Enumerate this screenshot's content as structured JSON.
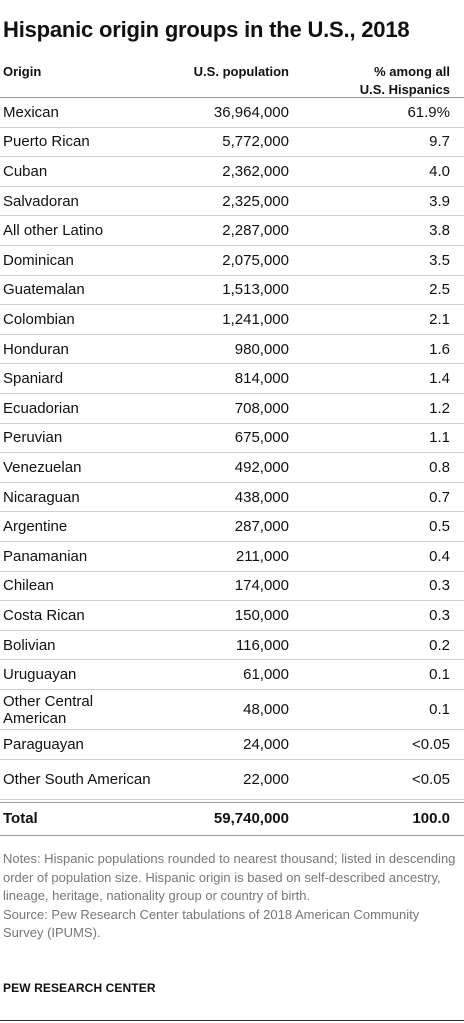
{
  "title": "Hispanic origin groups in the U.S., 2018",
  "headers": {
    "origin": "Origin",
    "population": "U.S. population",
    "percent_line1": "% among all",
    "percent_line2": "U.S. Hispanics"
  },
  "chart_data": {
    "type": "table",
    "title": "Hispanic origin groups in the U.S., 2018",
    "columns": [
      "Origin",
      "U.S. population",
      "% among all U.S. Hispanics"
    ],
    "rows": [
      {
        "origin": "Mexican",
        "population": "36,964,000",
        "percent": "61.9%"
      },
      {
        "origin": "Puerto Rican",
        "population": "5,772,000",
        "percent": "9.7"
      },
      {
        "origin": "Cuban",
        "population": "2,362,000",
        "percent": "4.0"
      },
      {
        "origin": "Salvadoran",
        "population": "2,325,000",
        "percent": "3.9"
      },
      {
        "origin": "All other Latino",
        "population": "2,287,000",
        "percent": "3.8"
      },
      {
        "origin": "Dominican",
        "population": "2,075,000",
        "percent": "3.5"
      },
      {
        "origin": "Guatemalan",
        "population": "1,513,000",
        "percent": "2.5"
      },
      {
        "origin": "Colombian",
        "population": "1,241,000",
        "percent": "2.1"
      },
      {
        "origin": "Honduran",
        "population": "980,000",
        "percent": "1.6"
      },
      {
        "origin": "Spaniard",
        "population": "814,000",
        "percent": "1.4"
      },
      {
        "origin": "Ecuadorian",
        "population": "708,000",
        "percent": "1.2"
      },
      {
        "origin": "Peruvian",
        "population": "675,000",
        "percent": "1.1"
      },
      {
        "origin": "Venezuelan",
        "population": "492,000",
        "percent": "0.8"
      },
      {
        "origin": "Nicaraguan",
        "population": "438,000",
        "percent": "0.7"
      },
      {
        "origin": "Argentine",
        "population": "287,000",
        "percent": "0.5"
      },
      {
        "origin": "Panamanian",
        "population": "211,000",
        "percent": "0.4"
      },
      {
        "origin": "Chilean",
        "population": "174,000",
        "percent": "0.3"
      },
      {
        "origin": "Costa Rican",
        "population": "150,000",
        "percent": "0.3"
      },
      {
        "origin": "Bolivian",
        "population": "116,000",
        "percent": "0.2"
      },
      {
        "origin": "Uruguayan",
        "population": "61,000",
        "percent": "0.1"
      },
      {
        "origin": "Other Central American",
        "population": "48,000",
        "percent": "0.1"
      },
      {
        "origin": "Paraguayan",
        "population": "24,000",
        "percent": "<0.05"
      },
      {
        "origin": "Other South American",
        "population": "22,000",
        "percent": "<0.05"
      }
    ],
    "total": {
      "origin": "Total",
      "population": "59,740,000",
      "percent": "100.0"
    }
  },
  "notes": "Notes: Hispanic populations rounded to nearest thousand; listed in descending order of population size. Hispanic origin is based on self-described ancestry, lineage, heritage, nationality group or country of birth.",
  "source": "Source: Pew Research Center tabulations of 2018 American Community Survey (IPUMS).",
  "organization": "PEW RESEARCH CENTER",
  "colors": {
    "text": "#111111",
    "notes": "#777777",
    "rule": "#d0d0d0"
  }
}
